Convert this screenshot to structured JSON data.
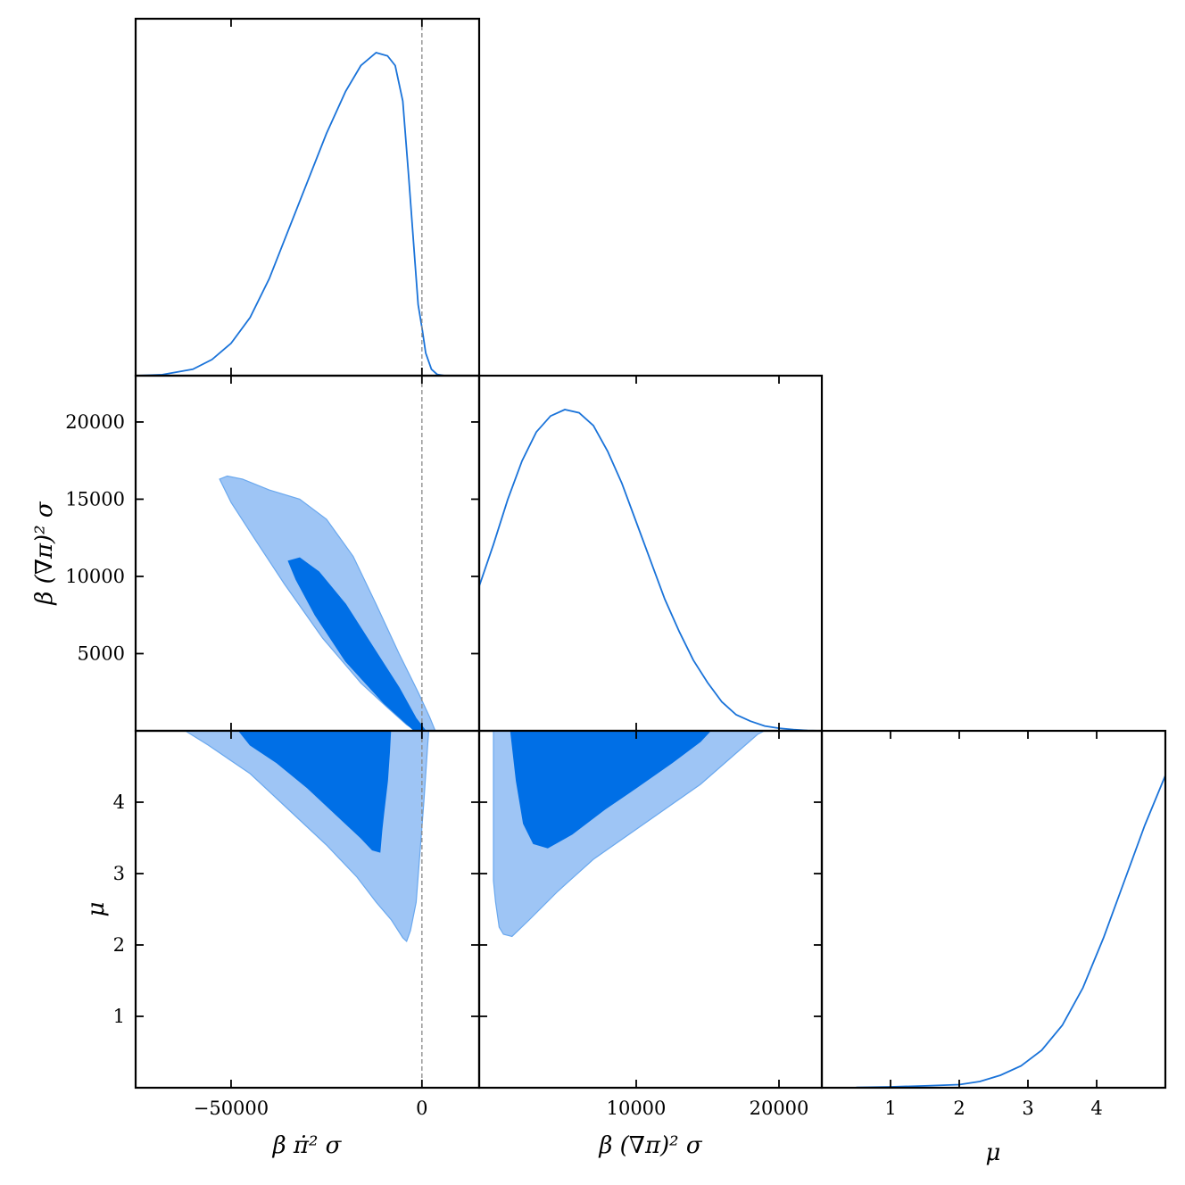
{
  "chart_data": {
    "type": "corner",
    "parameters": [
      {
        "id": "p1",
        "label": "β π̇² σ",
        "range": [
          -75000,
          15000
        ],
        "ticks": [
          {
            "v": -50000,
            "t": "−50000"
          },
          {
            "v": 0,
            "t": "0"
          }
        ]
      },
      {
        "id": "p2",
        "label": "β (∇π)² σ",
        "range": [
          -1000,
          23000
        ],
        "ticks": [
          {
            "v": 10000,
            "t": "10000"
          },
          {
            "v": 20000,
            "t": "20000"
          }
        ]
      },
      {
        "id": "p3",
        "label": "μ",
        "range": [
          0,
          5
        ],
        "ticks": [
          {
            "v": 1,
            "t": "1"
          },
          {
            "v": 2,
            "t": "2"
          },
          {
            "v": 3,
            "t": "3"
          },
          {
            "v": 4,
            "t": "4"
          }
        ]
      }
    ],
    "y_axes": {
      "p2": {
        "range": [
          0,
          23000
        ],
        "ticks": [
          {
            "v": 5000,
            "t": "5000"
          },
          {
            "v": 10000,
            "t": "10000"
          },
          {
            "v": 15000,
            "t": "15000"
          },
          {
            "v": 20000,
            "t": "20000"
          }
        ]
      },
      "p3": {
        "range": [
          0,
          5
        ],
        "ticks": [
          {
            "v": 1,
            "t": "1"
          },
          {
            "v": 2,
            "t": "2"
          },
          {
            "v": 3,
            "t": "3"
          },
          {
            "v": 4,
            "t": "4"
          }
        ]
      }
    },
    "reference_line": {
      "parameter": "p1",
      "value": 0
    },
    "marginals": {
      "p1": {
        "x": [
          -75000,
          -68000,
          -60000,
          -55000,
          -50000,
          -45000,
          -40000,
          -35000,
          -30000,
          -25000,
          -20000,
          -16000,
          -12000,
          -9000,
          -7000,
          -5000,
          -3500,
          -2000,
          -1000,
          0,
          1000,
          2500,
          4000,
          6000
        ],
        "y": [
          0,
          0.003,
          0.02,
          0.05,
          0.1,
          0.18,
          0.3,
          0.45,
          0.6,
          0.75,
          0.88,
          0.96,
          1.0,
          0.99,
          0.96,
          0.85,
          0.62,
          0.38,
          0.22,
          0.15,
          0.07,
          0.02,
          0.004,
          0
        ]
      },
      "p2": {
        "x": [
          -1000,
          0,
          1000,
          2000,
          3000,
          4000,
          5000,
          6000,
          7000,
          8000,
          9000,
          10000,
          11000,
          12000,
          13000,
          14000,
          15000,
          16000,
          17000,
          18000,
          19000,
          20000,
          21000,
          22000,
          23000
        ],
        "y": [
          0.45,
          0.58,
          0.72,
          0.84,
          0.93,
          0.98,
          1.0,
          0.99,
          0.95,
          0.87,
          0.77,
          0.65,
          0.53,
          0.41,
          0.31,
          0.22,
          0.15,
          0.09,
          0.05,
          0.03,
          0.015,
          0.008,
          0.004,
          0.001,
          0
        ]
      },
      "p3": {
        "x": [
          0.5,
          1.0,
          1.5,
          2.0,
          2.3,
          2.6,
          2.9,
          3.2,
          3.5,
          3.8,
          4.1,
          4.4,
          4.7,
          5.0
        ],
        "y": [
          0.001,
          0.003,
          0.006,
          0.01,
          0.02,
          0.04,
          0.07,
          0.12,
          0.2,
          0.32,
          0.48,
          0.66,
          0.84,
          1.0
        ]
      }
    },
    "contours_2d": {
      "p1_p2": {
        "outer": [
          [
            -53000,
            16300
          ],
          [
            -50000,
            14800
          ],
          [
            -44000,
            12500
          ],
          [
            -36000,
            9500
          ],
          [
            -26000,
            6000
          ],
          [
            -16000,
            3100
          ],
          [
            -9000,
            1500
          ],
          [
            -4000,
            400
          ],
          [
            -1500,
            0
          ],
          [
            3500,
            0
          ],
          [
            2000,
            900
          ],
          [
            -1000,
            2500
          ],
          [
            -6000,
            5000
          ],
          [
            -12000,
            8200
          ],
          [
            -18000,
            11300
          ],
          [
            -25000,
            13700
          ],
          [
            -32000,
            15000
          ],
          [
            -40000,
            15600
          ],
          [
            -47000,
            16300
          ],
          [
            -51000,
            16500
          ]
        ],
        "inner": [
          [
            -35000,
            11000
          ],
          [
            -33000,
            9800
          ],
          [
            -28000,
            7500
          ],
          [
            -20000,
            4500
          ],
          [
            -10000,
            1800
          ],
          [
            -2000,
            0
          ],
          [
            1000,
            0
          ],
          [
            -1500,
            800
          ],
          [
            -6000,
            2800
          ],
          [
            -13000,
            5500
          ],
          [
            -20000,
            8200
          ],
          [
            -27000,
            10300
          ],
          [
            -32000,
            11200
          ]
        ]
      },
      "p1_p3": {
        "outer": [
          [
            -62000,
            5.0
          ],
          [
            -56000,
            4.8
          ],
          [
            -45000,
            4.4
          ],
          [
            -35000,
            3.9
          ],
          [
            -25000,
            3.4
          ],
          [
            -17000,
            2.95
          ],
          [
            -12000,
            2.6
          ],
          [
            -8000,
            2.35
          ],
          [
            -5000,
            2.1
          ],
          [
            -4000,
            2.05
          ],
          [
            -3000,
            2.2
          ],
          [
            -1500,
            2.6
          ],
          [
            -500,
            3.3
          ],
          [
            500,
            4.0
          ],
          [
            1500,
            4.8
          ],
          [
            1800,
            5.0
          ]
        ],
        "inner": [
          [
            -48000,
            5.0
          ],
          [
            -45000,
            4.8
          ],
          [
            -38000,
            4.55
          ],
          [
            -30000,
            4.2
          ],
          [
            -22000,
            3.8
          ],
          [
            -16000,
            3.5
          ],
          [
            -13000,
            3.33
          ],
          [
            -11000,
            3.3
          ],
          [
            -10500,
            3.6
          ],
          [
            -10000,
            3.85
          ],
          [
            -9000,
            4.3
          ],
          [
            -8500,
            4.7
          ],
          [
            -8200,
            5.0
          ]
        ]
      },
      "p2_p3": {
        "outer": [
          [
            0,
            5.0
          ],
          [
            0,
            2.9
          ],
          [
            150,
            2.6
          ],
          [
            400,
            2.25
          ],
          [
            700,
            2.15
          ],
          [
            1300,
            2.12
          ],
          [
            2500,
            2.35
          ],
          [
            4500,
            2.75
          ],
          [
            7000,
            3.2
          ],
          [
            9500,
            3.55
          ],
          [
            12000,
            3.9
          ],
          [
            14500,
            4.25
          ],
          [
            16500,
            4.6
          ],
          [
            18500,
            4.95
          ],
          [
            19000,
            5.0
          ]
        ],
        "inner": [
          [
            1200,
            5.0
          ],
          [
            1600,
            4.3
          ],
          [
            2100,
            3.7
          ],
          [
            2800,
            3.42
          ],
          [
            3800,
            3.36
          ],
          [
            5500,
            3.55
          ],
          [
            7800,
            3.9
          ],
          [
            10000,
            4.2
          ],
          [
            12500,
            4.55
          ],
          [
            14500,
            4.85
          ],
          [
            15200,
            5.0
          ]
        ]
      }
    }
  }
}
